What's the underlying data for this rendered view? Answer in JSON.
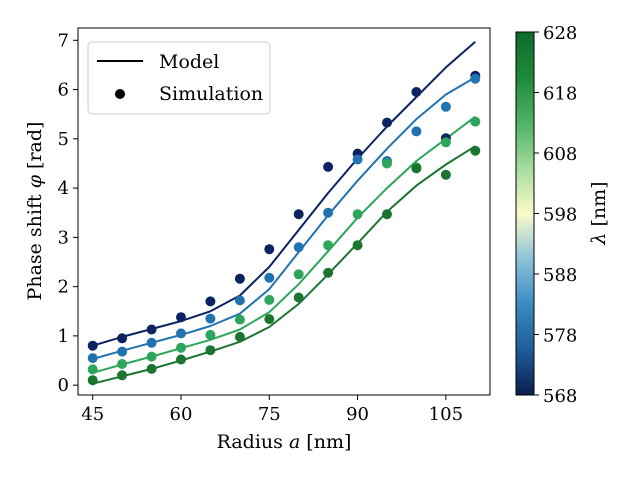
{
  "chart_data": {
    "type": "line+scatter",
    "xlabel_text": "Radius ",
    "xlabel_symbol": "a",
    "xlabel_unit": " [nm]",
    "ylabel_text": "Phase shift ",
    "ylabel_symbol": "φ",
    "ylabel_unit": " [rad]",
    "xlim": [
      42.5,
      112.5
    ],
    "ylim": [
      -0.2,
      7.25
    ],
    "xticks": [
      45,
      60,
      75,
      90,
      105
    ],
    "yticks": [
      0,
      1,
      2,
      3,
      4,
      5,
      6,
      7
    ],
    "legend": {
      "position": "top-left",
      "entries": [
        {
          "label": "Model",
          "marker": "line"
        },
        {
          "label": "Simulation",
          "marker": "dot"
        }
      ]
    },
    "colorbar": {
      "label_symbol": "λ",
      "label_unit": " [nm]",
      "range": [
        568,
        628
      ],
      "ticks": [
        568,
        578,
        588,
        598,
        608,
        618,
        628
      ],
      "colormap": [
        "#0b1d4f",
        "#1f5d9a",
        "#3b8bc3",
        "#8cc3d8",
        "#fafac8",
        "#a6dba0",
        "#4fb265",
        "#1f8a3b",
        "#0d6b2a"
      ]
    },
    "series": [
      {
        "name": "λ = 568 nm",
        "color": "#0b2360",
        "model": {
          "x": [
            45,
            50,
            55,
            60,
            65,
            70,
            75,
            80,
            85,
            90,
            95,
            100,
            105,
            110
          ],
          "y": [
            0.8,
            0.98,
            1.14,
            1.3,
            1.5,
            1.82,
            2.4,
            3.15,
            3.9,
            4.6,
            5.25,
            5.85,
            6.45,
            6.97
          ]
        },
        "sim": {
          "x": [
            45,
            50,
            55,
            60,
            65,
            70,
            75,
            80,
            85,
            90,
            95,
            100,
            105,
            110
          ],
          "y": [
            0.8,
            0.95,
            1.13,
            1.38,
            1.7,
            2.16,
            2.76,
            3.47,
            4.43,
            4.7,
            5.33,
            5.95,
            5.01,
            6.28
          ]
        }
      },
      {
        "name": "λ = 578 nm",
        "color": "#2173b0",
        "model": {
          "x": [
            45,
            50,
            55,
            60,
            65,
            70,
            75,
            80,
            85,
            90,
            95,
            100,
            105,
            110
          ],
          "y": [
            0.53,
            0.7,
            0.86,
            1.02,
            1.2,
            1.45,
            1.95,
            2.7,
            3.45,
            4.15,
            4.8,
            5.4,
            5.9,
            6.25
          ]
        },
        "sim": {
          "x": [
            45,
            50,
            55,
            60,
            65,
            70,
            75,
            80,
            85,
            90,
            95,
            100,
            105,
            110
          ],
          "y": [
            0.55,
            0.68,
            0.86,
            1.05,
            1.35,
            1.72,
            2.18,
            2.8,
            3.5,
            4.58,
            4.55,
            5.15,
            5.65,
            6.22
          ]
        }
      },
      {
        "name": "λ = 608 nm",
        "color": "#2da55a",
        "model": {
          "x": [
            45,
            50,
            55,
            60,
            65,
            70,
            75,
            80,
            85,
            90,
            95,
            100,
            105,
            110
          ],
          "y": [
            0.25,
            0.42,
            0.58,
            0.75,
            0.92,
            1.13,
            1.48,
            2.05,
            2.72,
            3.4,
            4.0,
            4.55,
            5.0,
            5.45
          ]
        },
        "sim": {
          "x": [
            45,
            50,
            55,
            60,
            65,
            70,
            75,
            80,
            85,
            90,
            95,
            100,
            105,
            110
          ],
          "y": [
            0.32,
            0.43,
            0.58,
            0.76,
            1.02,
            1.33,
            1.73,
            2.25,
            2.84,
            3.47,
            4.5,
            4.42,
            4.93,
            5.35
          ]
        }
      },
      {
        "name": "λ = 628 nm",
        "color": "#1b7530",
        "model": {
          "x": [
            45,
            50,
            55,
            60,
            65,
            70,
            75,
            80,
            85,
            90,
            95,
            100,
            105,
            110
          ],
          "y": [
            0.03,
            0.18,
            0.33,
            0.5,
            0.68,
            0.88,
            1.18,
            1.65,
            2.25,
            2.88,
            3.52,
            4.05,
            4.48,
            4.85
          ]
        },
        "sim": {
          "x": [
            45,
            50,
            55,
            60,
            65,
            70,
            75,
            80,
            85,
            90,
            95,
            100,
            105,
            110
          ],
          "y": [
            0.1,
            0.2,
            0.33,
            0.52,
            0.71,
            0.98,
            1.34,
            1.78,
            2.28,
            2.84,
            3.47,
            4.4,
            4.27,
            4.76
          ]
        }
      }
    ]
  }
}
